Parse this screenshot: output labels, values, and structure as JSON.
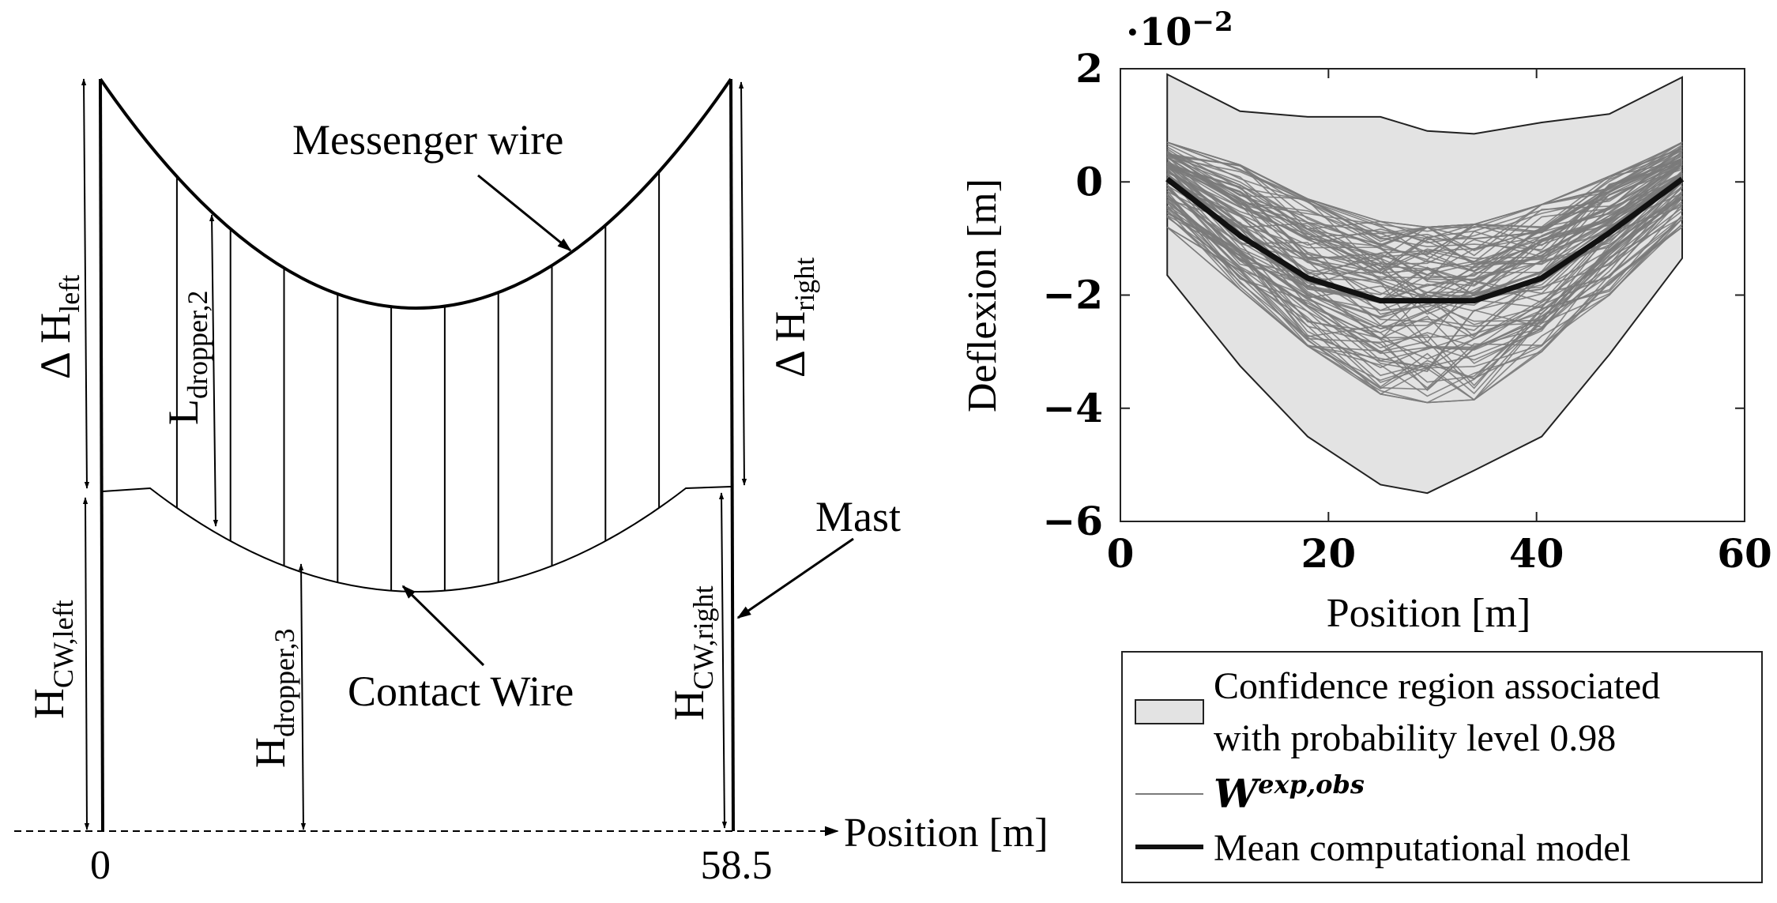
{
  "diagram": {
    "labels": {
      "messenger_wire": "Messenger wire",
      "contact_wire": "Contact Wire",
      "mast": "Mast",
      "position_axis": "Position [m]",
      "x_start": "0",
      "x_end": "58.5",
      "dh_left_base": "Δ H",
      "dh_left_sub": "left",
      "dh_right_base": "Δ H",
      "dh_right_sub": "right",
      "l_dropper_base": "L",
      "l_dropper_sub": "dropper,2",
      "h_dropper_base": "H",
      "h_dropper_sub": "dropper,3",
      "hcw_left_base": "H",
      "hcw_left_sub": "CW,left",
      "hcw_right_base": "H",
      "hcw_right_sub": "CW,right"
    },
    "dropper_count": 10
  },
  "chart_data": {
    "type": "line",
    "title": "",
    "scale_label_base": "·10",
    "scale_label_exp": "−2",
    "xlabel": "Position [m]",
    "ylabel": "Deflexion [m]",
    "xlim": [
      0,
      60
    ],
    "ylim": [
      -6,
      2
    ],
    "y_scale_factor": 0.01,
    "xticks": [
      0,
      20,
      40,
      60
    ],
    "xtick_labels": [
      "0",
      "20",
      "40",
      "60"
    ],
    "yticks": [
      -6,
      -4,
      -2,
      0,
      2
    ],
    "ytick_labels": [
      "−6",
      "−4",
      "−2",
      "0",
      "2"
    ],
    "grid": false,
    "legend_position": "below",
    "legend": [
      {
        "kind": "area",
        "label_line1": "Confidence region associated",
        "label_line2": "with probability level 0.98"
      },
      {
        "kind": "thin-line",
        "label_base": "W",
        "label_sup": "exp,obs"
      },
      {
        "kind": "thick-line",
        "label": "Mean computational model"
      }
    ],
    "x": [
      4.5,
      11.5,
      18,
      25,
      29.5,
      34,
      40.5,
      47,
      54
    ],
    "confidence_upper": [
      1.9,
      1.25,
      1.15,
      1.15,
      0.9,
      0.85,
      1.05,
      1.2,
      1.85
    ],
    "confidence_lower": [
      -1.65,
      -3.25,
      -4.5,
      -5.35,
      -5.5,
      -5.1,
      -4.5,
      -3.05,
      -1.35
    ],
    "mean_model": [
      0.05,
      -0.95,
      -1.7,
      -2.1,
      -2.1,
      -2.1,
      -1.7,
      -0.9,
      0.05
    ],
    "observation_count": 100,
    "observation_envelope_upper": [
      0.7,
      0.3,
      -0.3,
      -0.7,
      -0.8,
      -0.75,
      -0.4,
      0.1,
      0.7
    ],
    "observation_envelope_lower": [
      -0.8,
      -1.9,
      -2.9,
      -3.75,
      -3.9,
      -3.85,
      -3.0,
      -2.0,
      -0.8
    ],
    "colors": {
      "confidence_fill": "#e3e3e3",
      "observations": "#7a7a7a",
      "mean": "#111111",
      "axes": "#222222"
    }
  }
}
